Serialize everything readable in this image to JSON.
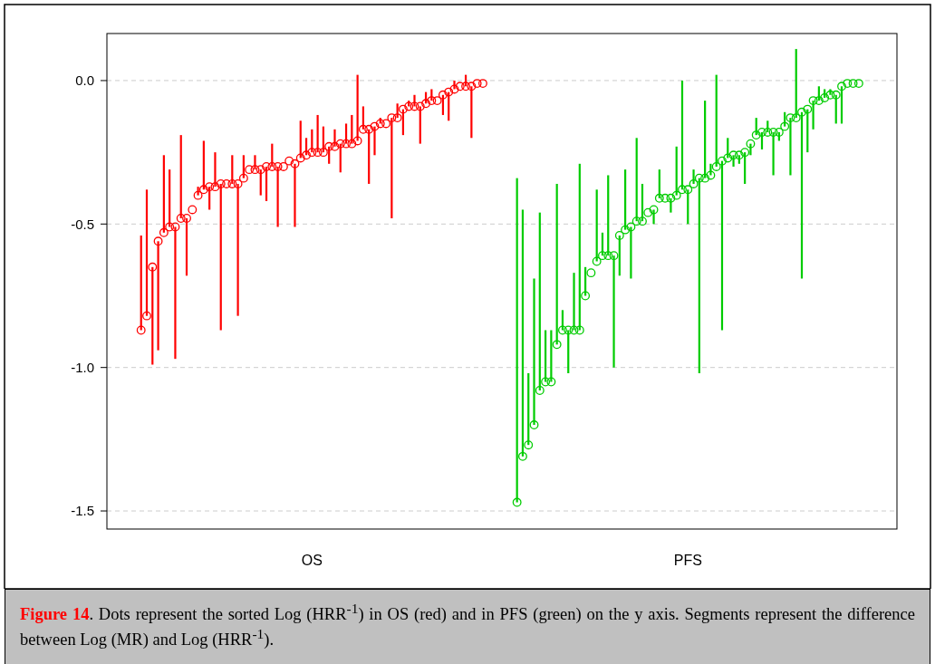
{
  "chart_data": {
    "type": "scatter",
    "marker": "circle",
    "grid": "y",
    "categories": [
      null,
      null,
      null,
      null,
      null,
      null,
      null,
      null,
      null,
      null,
      null,
      null,
      null,
      null,
      null,
      null,
      null,
      null,
      null,
      null,
      null,
      null,
      null,
      null,
      null,
      null,
      null,
      null,
      null,
      null,
      "OS",
      null,
      null,
      null,
      null,
      null,
      null,
      null,
      null,
      null,
      null,
      null,
      null,
      null,
      null,
      null,
      null,
      null,
      null,
      null,
      null,
      null,
      null,
      null,
      null,
      null,
      null,
      null,
      null,
      null,
      null,
      null,
      null,
      null,
      null,
      null,
      null,
      null,
      null,
      null,
      null,
      null,
      null,
      null,
      null,
      null,
      null,
      null,
      null,
      null,
      null,
      null,
      null,
      null,
      null,
      null,
      null,
      null,
      null,
      null,
      null,
      null,
      null,
      null,
      null,
      null,
      "PFS",
      null,
      null,
      null,
      null,
      null,
      null,
      null,
      null,
      null,
      null,
      null,
      null,
      null,
      null,
      null,
      null,
      null,
      null,
      null,
      null,
      null,
      null,
      null,
      null,
      null,
      null,
      null,
      null,
      null,
      null
    ],
    "ylim": [
      -1.563,
      0.164
    ],
    "yticks": [
      {
        "value": 0,
        "label": "0.0"
      },
      {
        "value": -0.5,
        "label": "-0.5"
      },
      {
        "value": -1,
        "label": "-1.0"
      },
      {
        "value": -1.5,
        "label": "-1.5"
      }
    ],
    "annotations": [
      "Figure 14",
      ". Dots represent the sorted Log (HRR$^{-1}$) in OS (red) and in PFS (green) on the y axis. Segments represent the difference between Log (MR) and Log (HRR$^{-1}$)."
    ],
    "series": [
      {
        "color": "#ff0000",
        "values": [
          -0.87,
          -0.82,
          -0.65,
          -0.56,
          -0.53,
          -0.51,
          -0.51,
          -0.48,
          -0.48,
          -0.45,
          -0.4,
          -0.38,
          -0.37,
          -0.37,
          -0.36,
          -0.36,
          -0.36,
          -0.36,
          -0.34,
          -0.31,
          -0.31,
          -0.31,
          -0.3,
          -0.3,
          -0.3,
          -0.3,
          -0.28,
          -0.29,
          -0.27,
          -0.26,
          -0.25,
          -0.25,
          -0.25,
          -0.23,
          -0.23,
          -0.22,
          -0.22,
          -0.22,
          -0.21,
          -0.17,
          -0.17,
          -0.16,
          -0.15,
          -0.15,
          -0.13,
          -0.13,
          -0.1,
          -0.09,
          -0.09,
          -0.09,
          -0.08,
          -0.07,
          -0.07,
          -0.05,
          -0.04,
          -0.03,
          -0.02,
          -0.02,
          -0.02,
          -0.01,
          -0.01,
          null,
          null,
          null,
          null,
          null,
          null,
          null,
          null,
          null,
          null,
          null,
          null,
          null,
          null,
          null,
          null,
          null,
          null,
          null,
          null,
          null,
          null,
          null,
          null,
          null,
          null,
          null,
          null,
          null,
          null,
          null,
          null,
          null,
          null,
          null,
          null,
          null,
          null,
          null,
          null,
          null,
          null,
          null,
          null,
          null,
          null,
          null,
          null,
          null,
          null,
          null,
          null,
          null,
          null,
          null,
          null,
          null,
          null,
          null,
          null,
          null,
          null,
          null,
          null,
          null,
          null
        ],
        "errors": [
          [
            -0.87,
            -0.54
          ],
          [
            -0.82,
            -0.38
          ],
          [
            -0.99,
            -0.65
          ],
          [
            -0.94,
            -0.56
          ],
          [
            -0.53,
            -0.26
          ],
          [
            -0.51,
            -0.31
          ],
          [
            -0.97,
            -0.51
          ],
          [
            -0.48,
            -0.19
          ],
          [
            -0.68,
            -0.48
          ],
          null,
          [
            -0.4,
            -0.37
          ],
          [
            -0.38,
            -0.21
          ],
          [
            -0.45,
            -0.37
          ],
          [
            -0.37,
            -0.25
          ],
          [
            -0.87,
            -0.36
          ],
          null,
          [
            -0.36,
            -0.26
          ],
          [
            -0.82,
            -0.36
          ],
          [
            -0.34,
            -0.26
          ],
          null,
          [
            -0.31,
            -0.26
          ],
          [
            -0.4,
            -0.31
          ],
          [
            -0.42,
            -0.3
          ],
          [
            -0.3,
            -0.22
          ],
          [
            -0.51,
            -0.3
          ],
          null,
          null,
          [
            -0.51,
            -0.29
          ],
          [
            -0.27,
            -0.14
          ],
          [
            -0.26,
            -0.2
          ],
          [
            -0.25,
            -0.17
          ],
          [
            -0.25,
            -0.12
          ],
          [
            -0.25,
            -0.16
          ],
          [
            -0.29,
            -0.23
          ],
          [
            -0.23,
            -0.17
          ],
          [
            -0.32,
            -0.22
          ],
          [
            -0.22,
            -0.15
          ],
          [
            -0.22,
            -0.12
          ],
          [
            -0.21,
            0.02
          ],
          [
            -0.17,
            -0.09
          ],
          [
            -0.36,
            -0.17
          ],
          [
            -0.26,
            -0.16
          ],
          [
            -0.15,
            -0.13
          ],
          null,
          [
            -0.48,
            -0.13
          ],
          [
            -0.13,
            -0.08
          ],
          [
            -0.19,
            -0.1
          ],
          [
            -0.09,
            -0.07
          ],
          [
            -0.09,
            -0.05
          ],
          [
            -0.22,
            -0.09
          ],
          [
            -0.08,
            -0.04
          ],
          [
            -0.07,
            -0.03
          ],
          null,
          [
            -0.12,
            -0.05
          ],
          [
            -0.14,
            -0.04
          ],
          [
            -0.03,
            0
          ],
          null,
          [
            -0.02,
            0.02
          ],
          [
            -0.2,
            -0.02
          ],
          null,
          null,
          null,
          null,
          null,
          null,
          null,
          null,
          null,
          null,
          null,
          null,
          null,
          null,
          null,
          null,
          null,
          null,
          null,
          null,
          null,
          null,
          null,
          null,
          null,
          null,
          null,
          null,
          null,
          null,
          null,
          null,
          null,
          null,
          null,
          null,
          null,
          null,
          null,
          null,
          null,
          null,
          null,
          null,
          null,
          null,
          null,
          null,
          null,
          null,
          null,
          null,
          null,
          null,
          null,
          null,
          null,
          null,
          null,
          null,
          null,
          null,
          null,
          null,
          null,
          null,
          null,
          null
        ]
      },
      {
        "color": "#00cc00",
        "values": [
          null,
          null,
          null,
          null,
          null,
          null,
          null,
          null,
          null,
          null,
          null,
          null,
          null,
          null,
          null,
          null,
          null,
          null,
          null,
          null,
          null,
          null,
          null,
          null,
          null,
          null,
          null,
          null,
          null,
          null,
          null,
          null,
          null,
          null,
          null,
          null,
          null,
          null,
          null,
          null,
          null,
          null,
          null,
          null,
          null,
          null,
          null,
          null,
          null,
          null,
          null,
          null,
          null,
          null,
          null,
          null,
          null,
          null,
          null,
          null,
          null,
          null,
          null,
          null,
          null,
          null,
          -1.47,
          -1.31,
          -1.27,
          -1.2,
          -1.08,
          -1.05,
          -1.05,
          -0.92,
          -0.87,
          -0.87,
          -0.87,
          -0.87,
          -0.75,
          -0.67,
          -0.63,
          -0.61,
          -0.61,
          -0.61,
          -0.54,
          -0.52,
          -0.51,
          -0.49,
          -0.49,
          -0.46,
          -0.45,
          -0.41,
          -0.41,
          -0.41,
          -0.4,
          -0.38,
          -0.38,
          -0.36,
          -0.34,
          -0.34,
          -0.33,
          -0.3,
          -0.28,
          -0.27,
          -0.26,
          -0.26,
          -0.25,
          -0.22,
          -0.19,
          -0.18,
          -0.18,
          -0.18,
          -0.18,
          -0.16,
          -0.13,
          -0.13,
          -0.11,
          -0.1,
          -0.07,
          -0.07,
          -0.06,
          -0.05,
          -0.05,
          -0.02,
          -0.01,
          -0.01,
          -0.01
        ],
        "errors": [
          null,
          null,
          null,
          null,
          null,
          null,
          null,
          null,
          null,
          null,
          null,
          null,
          null,
          null,
          null,
          null,
          null,
          null,
          null,
          null,
          null,
          null,
          null,
          null,
          null,
          null,
          null,
          null,
          null,
          null,
          null,
          null,
          null,
          null,
          null,
          null,
          null,
          null,
          null,
          null,
          null,
          null,
          null,
          null,
          null,
          null,
          null,
          null,
          null,
          null,
          null,
          null,
          null,
          null,
          null,
          null,
          null,
          null,
          null,
          null,
          null,
          null,
          null,
          null,
          null,
          null,
          [
            -1.47,
            -0.34
          ],
          [
            -1.31,
            -0.45
          ],
          [
            -1.27,
            -1.02
          ],
          [
            -1.2,
            -0.69
          ],
          [
            -1.08,
            -0.46
          ],
          [
            -1.05,
            -0.87
          ],
          [
            -1.05,
            -0.87
          ],
          [
            -0.92,
            -0.36
          ],
          [
            -0.87,
            -0.8
          ],
          [
            -1.02,
            -0.87
          ],
          [
            -0.87,
            -0.67
          ],
          [
            -0.87,
            -0.29
          ],
          [
            -0.75,
            -0.65
          ],
          null,
          [
            -0.63,
            -0.38
          ],
          [
            -0.61,
            -0.53
          ],
          [
            -0.61,
            -0.33
          ],
          [
            -1,
            -0.61
          ],
          [
            -0.68,
            -0.54
          ],
          [
            -0.52,
            -0.31
          ],
          [
            -0.69,
            -0.51
          ],
          [
            -0.49,
            -0.2
          ],
          [
            -0.49,
            -0.36
          ],
          null,
          [
            -0.5,
            -0.45
          ],
          [
            -0.41,
            -0.31
          ],
          null,
          [
            -0.46,
            -0.41
          ],
          [
            -0.4,
            -0.23
          ],
          [
            -0.38,
            0
          ],
          [
            -0.5,
            -0.38
          ],
          [
            -0.36,
            -0.31
          ],
          [
            -1.02,
            -0.34
          ],
          [
            -0.34,
            -0.07
          ],
          [
            -0.33,
            -0.29
          ],
          [
            -0.3,
            0.02
          ],
          [
            -0.87,
            -0.28
          ],
          [
            -0.27,
            -0.2
          ],
          [
            -0.3,
            -0.26
          ],
          [
            -0.29,
            -0.26
          ],
          [
            -0.36,
            -0.25
          ],
          [
            -0.26,
            -0.22
          ],
          [
            -0.19,
            -0.13
          ],
          [
            -0.24,
            -0.18
          ],
          [
            -0.18,
            -0.14
          ],
          [
            -0.33,
            -0.18
          ],
          [
            -0.21,
            -0.18
          ],
          [
            -0.16,
            -0.11
          ],
          [
            -0.33,
            -0.13
          ],
          [
            -0.13,
            0.11
          ],
          [
            -0.69,
            -0.11
          ],
          [
            -0.25,
            -0.1
          ],
          [
            -0.17,
            -0.07
          ],
          [
            -0.07,
            -0.02
          ],
          [
            -0.06,
            -0.03
          ],
          [
            -0.05,
            -0.03
          ],
          [
            -0.15,
            -0.05
          ],
          [
            -0.15,
            -0.02
          ],
          null,
          null,
          null
        ]
      }
    ]
  }
}
